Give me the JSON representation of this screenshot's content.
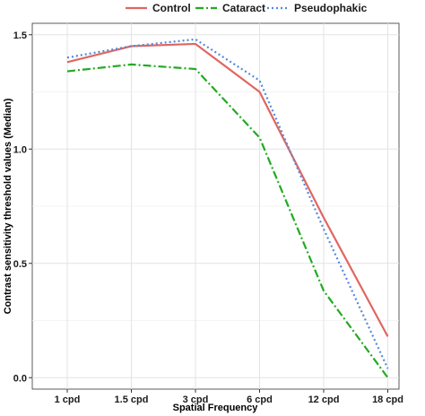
{
  "chart_data": {
    "type": "line",
    "title": "",
    "xlabel": "Spatial Frequency",
    "ylabel": "Contrast sensitivity threshold values (Median)",
    "categories": [
      "1 cpd",
      "1.5 cpd",
      "3 cpd",
      "6 cpd",
      "12 cpd",
      "18 cpd"
    ],
    "ylim": [
      -0.05,
      1.55
    ],
    "yticks": [
      "0.0",
      "0.5",
      "1.0",
      "1.5"
    ],
    "grid": true,
    "legend_position": "top",
    "series": [
      {
        "name": "Control",
        "values": [
          1.38,
          1.45,
          1.46,
          1.25,
          0.7,
          0.18
        ],
        "color": "#e06660",
        "dash": "solid"
      },
      {
        "name": "Cataract",
        "values": [
          1.34,
          1.37,
          1.35,
          1.05,
          0.38,
          0.0
        ],
        "color": "#22aa22",
        "dash": "dashdot"
      },
      {
        "name": "Pseudophakic",
        "values": [
          1.4,
          1.45,
          1.48,
          1.3,
          0.65,
          0.04
        ],
        "color": "#5588dd",
        "dash": "dotted"
      }
    ]
  }
}
